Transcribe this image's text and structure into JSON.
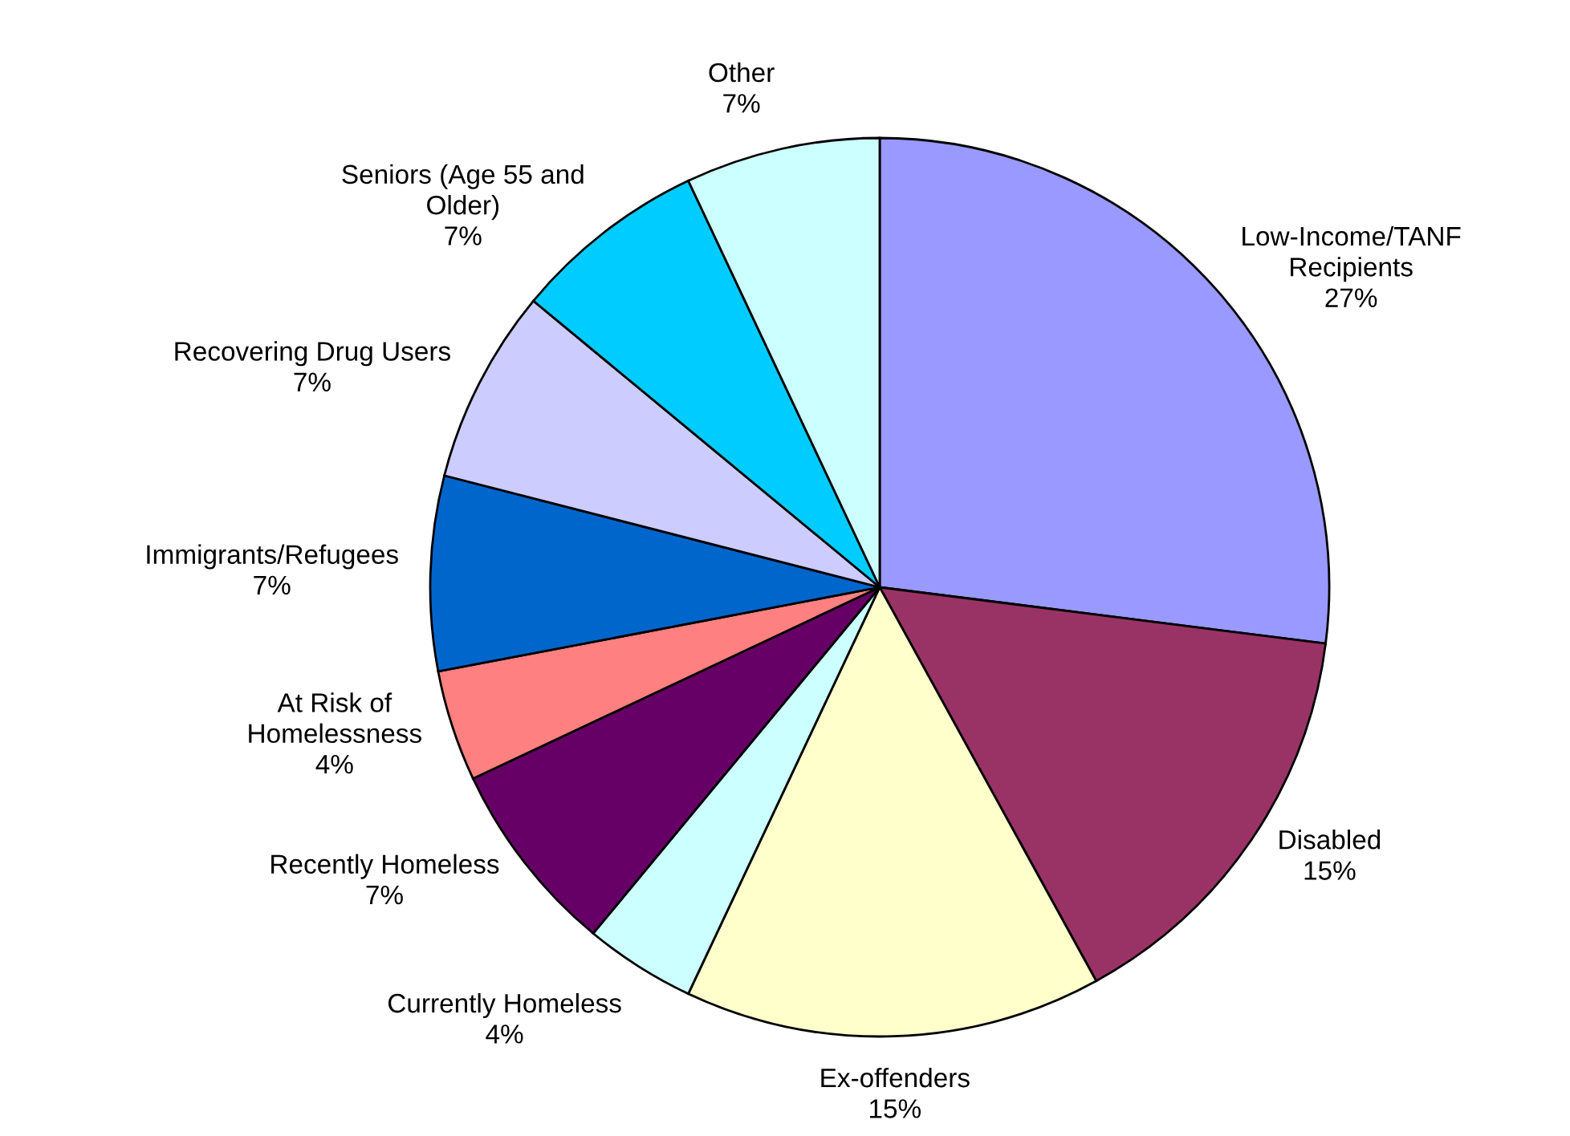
{
  "chart_data": {
    "type": "pie",
    "categories": [
      "Low-Income/TANF\nRecipients",
      "Disabled",
      "Ex-offenders",
      "Currently Homeless",
      "Recently Homeless",
      "At Risk of\nHomelessness",
      "Immigrants/Refugees",
      "Recovering Drug Users",
      "Seniors (Age 55 and\nOlder)",
      "Other"
    ],
    "values": [
      27,
      15,
      15,
      4,
      7,
      4,
      7,
      7,
      7,
      7
    ],
    "colors": [
      "#9999ff",
      "#993366",
      "#ffffcc",
      "#ccffff",
      "#660066",
      "#ff8080",
      "#0066cc",
      "#ccccff",
      "#00ccff",
      "#ccffff"
    ],
    "value_labels": [
      "27%",
      "15%",
      "15%",
      "4%",
      "7%",
      "4%",
      "7%",
      "7%",
      "7%",
      "7%"
    ],
    "legend": false
  }
}
